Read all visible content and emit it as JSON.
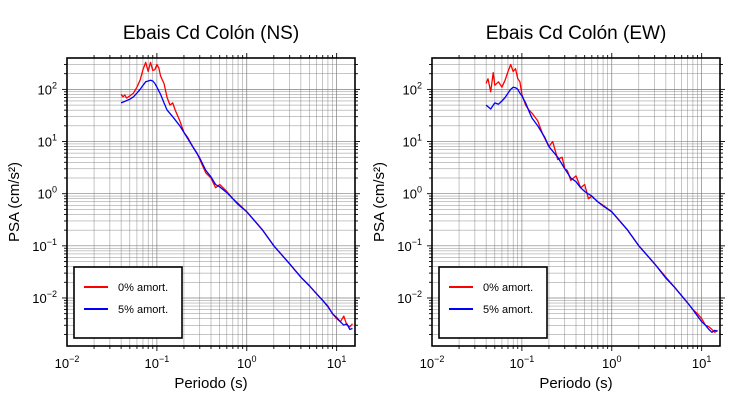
{
  "colors": {
    "unamortized": "#ff0000",
    "amortized": "#0000ff",
    "grid": "#808080",
    "frame": "#000000"
  },
  "chart_data": [
    {
      "type": "line",
      "title": "Ebais Cd Colón (NS)",
      "xlabel": "Periodo (s)",
      "ylabel": "PSA (cm/s²)",
      "xscale": "log",
      "yscale": "log",
      "xlim": [
        0.01,
        16
      ],
      "ylim": [
        0.0012,
        400
      ],
      "x_ticks": [
        {
          "value": 0.01,
          "base": "10",
          "exp": "−2"
        },
        {
          "value": 0.1,
          "base": "10",
          "exp": "−1"
        },
        {
          "value": 1,
          "base": "10",
          "exp": "0"
        },
        {
          "value": 10,
          "base": "10",
          "exp": "1"
        }
      ],
      "y_ticks": [
        {
          "value": 100,
          "base": "10",
          "exp": "2"
        },
        {
          "value": 10,
          "base": "10",
          "exp": "1"
        },
        {
          "value": 1,
          "base": "10",
          "exp": "0"
        },
        {
          "value": 0.1,
          "base": "10",
          "exp": "−1"
        },
        {
          "value": 0.01,
          "base": "10",
          "exp": "−2"
        }
      ],
      "grid": true,
      "legend_position": "bottom-left",
      "series": [
        {
          "name": "0% amort.",
          "color": "#ff0000",
          "x": [
            0.04,
            0.042,
            0.044,
            0.046,
            0.05,
            0.055,
            0.06,
            0.065,
            0.07,
            0.075,
            0.08,
            0.085,
            0.09,
            0.095,
            0.1,
            0.105,
            0.11,
            0.12,
            0.13,
            0.14,
            0.15,
            0.16,
            0.18,
            0.2,
            0.22,
            0.25,
            0.28,
            0.3,
            0.35,
            0.4,
            0.45,
            0.5,
            0.6,
            0.7,
            0.8,
            1,
            1.5,
            2,
            3,
            4,
            5,
            6,
            7,
            8,
            9,
            10,
            11,
            12,
            13,
            14,
            15
          ],
          "y": [
            80,
            72,
            78,
            68,
            75,
            85,
            110,
            150,
            240,
            330,
            220,
            330,
            230,
            240,
            300,
            260,
            180,
            130,
            70,
            50,
            55,
            40,
            25,
            15,
            12,
            8,
            6,
            4.5,
            2.5,
            2.0,
            1.3,
            1.5,
            1.1,
            0.8,
            0.65,
            0.45,
            0.2,
            0.1,
            0.045,
            0.025,
            0.017,
            0.012,
            0.009,
            0.007,
            0.005,
            0.004,
            0.0035,
            0.0045,
            0.003,
            0.0028,
            0.0032
          ]
        },
        {
          "name": "5% amort.",
          "color": "#0000ff",
          "x": [
            0.04,
            0.045,
            0.05,
            0.055,
            0.06,
            0.065,
            0.07,
            0.075,
            0.08,
            0.085,
            0.09,
            0.095,
            0.1,
            0.11,
            0.12,
            0.13,
            0.15,
            0.18,
            0.2,
            0.25,
            0.3,
            0.35,
            0.4,
            0.45,
            0.5,
            0.6,
            0.7,
            0.8,
            1,
            1.5,
            2,
            3,
            4,
            5,
            6,
            7,
            8,
            9,
            10,
            11,
            12,
            13,
            14,
            15
          ],
          "y": [
            55,
            60,
            65,
            72,
            85,
            100,
            120,
            140,
            145,
            150,
            145,
            130,
            110,
            80,
            55,
            40,
            30,
            20,
            15,
            8,
            4.8,
            2.8,
            2.1,
            1.5,
            1.35,
            1.05,
            0.8,
            0.62,
            0.45,
            0.2,
            0.1,
            0.045,
            0.025,
            0.017,
            0.012,
            0.009,
            0.0068,
            0.005,
            0.0042,
            0.0035,
            0.003,
            0.0032,
            0.0025,
            0.0026
          ]
        }
      ]
    },
    {
      "type": "line",
      "title": "Ebais Cd Colón (EW)",
      "xlabel": "Periodo (s)",
      "ylabel": "PSA (cm/s²)",
      "xscale": "log",
      "yscale": "log",
      "xlim": [
        0.01,
        16
      ],
      "ylim": [
        0.0012,
        400
      ],
      "x_ticks": [
        {
          "value": 0.01,
          "base": "10",
          "exp": "−2"
        },
        {
          "value": 0.1,
          "base": "10",
          "exp": "−1"
        },
        {
          "value": 1,
          "base": "10",
          "exp": "0"
        },
        {
          "value": 10,
          "base": "10",
          "exp": "1"
        }
      ],
      "y_ticks": [
        {
          "value": 100,
          "base": "10",
          "exp": "2"
        },
        {
          "value": 10,
          "base": "10",
          "exp": "1"
        },
        {
          "value": 1,
          "base": "10",
          "exp": "0"
        },
        {
          "value": 0.1,
          "base": "10",
          "exp": "−1"
        },
        {
          "value": 0.01,
          "base": "10",
          "exp": "−2"
        }
      ],
      "grid": true,
      "legend_position": "bottom-left",
      "series": [
        {
          "name": "0% amort.",
          "color": "#ff0000",
          "x": [
            0.04,
            0.042,
            0.045,
            0.048,
            0.05,
            0.055,
            0.06,
            0.065,
            0.07,
            0.075,
            0.08,
            0.085,
            0.09,
            0.095,
            0.1,
            0.11,
            0.12,
            0.13,
            0.15,
            0.17,
            0.2,
            0.22,
            0.25,
            0.28,
            0.3,
            0.32,
            0.35,
            0.4,
            0.45,
            0.5,
            0.55,
            0.6,
            0.7,
            0.8,
            1,
            1.5,
            2,
            3,
            4,
            5,
            6,
            7,
            8,
            9,
            10,
            11,
            12,
            13,
            14,
            15
          ],
          "y": [
            130,
            160,
            90,
            210,
            120,
            140,
            110,
            150,
            220,
            300,
            220,
            250,
            160,
            140,
            80,
            50,
            40,
            35,
            25,
            14,
            8,
            10,
            4.5,
            5,
            3,
            2.8,
            1.8,
            2.2,
            1.3,
            1.5,
            0.8,
            0.9,
            0.7,
            0.6,
            0.45,
            0.2,
            0.1,
            0.045,
            0.025,
            0.016,
            0.011,
            0.008,
            0.006,
            0.005,
            0.004,
            0.003,
            0.0028,
            0.0025,
            0.0022,
            0.0024
          ]
        },
        {
          "name": "5% amort.",
          "color": "#0000ff",
          "x": [
            0.04,
            0.045,
            0.05,
            0.055,
            0.06,
            0.065,
            0.07,
            0.075,
            0.08,
            0.085,
            0.09,
            0.095,
            0.1,
            0.11,
            0.12,
            0.13,
            0.15,
            0.18,
            0.2,
            0.25,
            0.3,
            0.35,
            0.4,
            0.45,
            0.5,
            0.6,
            0.7,
            0.8,
            1,
            1.5,
            2,
            3,
            4,
            5,
            6,
            7,
            8,
            9,
            10,
            11,
            12,
            13,
            14,
            15
          ],
          "y": [
            50,
            42,
            55,
            52,
            60,
            70,
            85,
            100,
            110,
            108,
            100,
            85,
            75,
            55,
            38,
            28,
            20,
            12,
            8,
            5,
            3,
            2,
            1.7,
            1.3,
            1.1,
            0.9,
            0.7,
            0.58,
            0.45,
            0.2,
            0.1,
            0.045,
            0.024,
            0.016,
            0.011,
            0.008,
            0.006,
            0.0045,
            0.0035,
            0.003,
            0.0025,
            0.0022,
            0.0024,
            0.0023
          ]
        }
      ]
    }
  ]
}
